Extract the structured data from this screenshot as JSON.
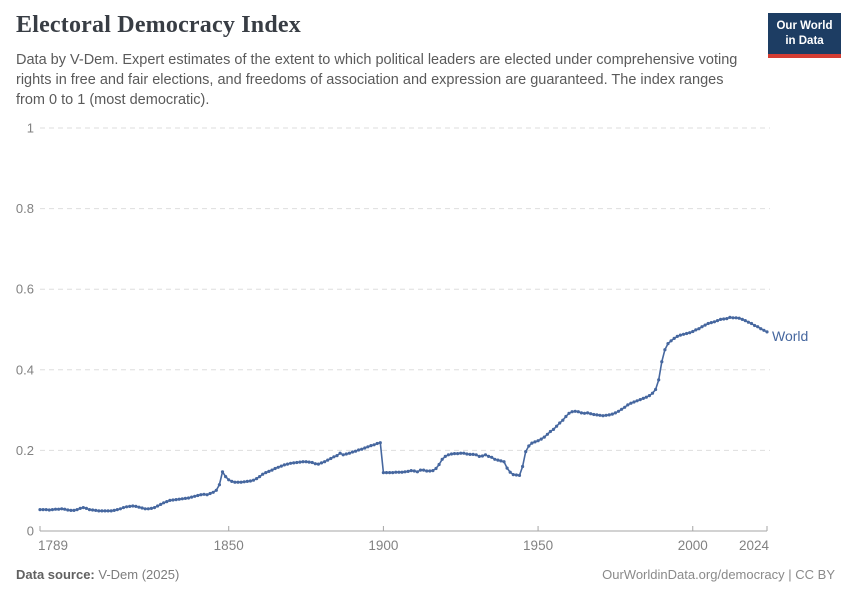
{
  "header": {
    "title": "Electoral Democracy Index",
    "subtitle": "Data by V-Dem. Expert estimates of the extent to which political leaders are elected under comprehensive voting rights in free and fair elections, and freedoms of association and expression are guaranteed. The index ranges from 0 to 1 (most democratic).",
    "logo": {
      "line1": "Our World",
      "line2": "in Data"
    }
  },
  "footer": {
    "source_label": "Data source:",
    "source_value": "V-Dem (2025)",
    "credit": "OurWorldinData.org/democracy | CC BY"
  },
  "chart_data": {
    "type": "line",
    "title": "Electoral Democracy Index",
    "xlabel": "",
    "ylabel": "",
    "xlim": [
      1789,
      2024
    ],
    "ylim": [
      0,
      1
    ],
    "x_ticks": [
      1789,
      1850,
      1900,
      1950,
      2000,
      2024
    ],
    "y_ticks": [
      0,
      0.2,
      0.4,
      0.6,
      0.8,
      1
    ],
    "y_tick_labels": [
      "0",
      "0.2",
      "0.4",
      "0.6",
      "0.8",
      "1"
    ],
    "grid": "horizontal-dashed",
    "legend_position": "end-of-line-label",
    "colors": {
      "line": "#46679f",
      "grid": "#dedede",
      "axis": "#a5a5a5",
      "tick_text": "#828282"
    },
    "series": [
      {
        "name": "World",
        "color": "#46679f",
        "x_start": 1789,
        "x_step": 1,
        "values": [
          0.053,
          0.053,
          0.053,
          0.052,
          0.053,
          0.054,
          0.054,
          0.055,
          0.054,
          0.052,
          0.051,
          0.051,
          0.053,
          0.056,
          0.058,
          0.056,
          0.053,
          0.052,
          0.051,
          0.05,
          0.05,
          0.05,
          0.05,
          0.05,
          0.051,
          0.053,
          0.055,
          0.058,
          0.06,
          0.061,
          0.062,
          0.061,
          0.059,
          0.057,
          0.055,
          0.055,
          0.056,
          0.058,
          0.062,
          0.066,
          0.07,
          0.073,
          0.076,
          0.077,
          0.078,
          0.079,
          0.08,
          0.081,
          0.082,
          0.084,
          0.086,
          0.088,
          0.09,
          0.091,
          0.09,
          0.093,
          0.096,
          0.101,
          0.115,
          0.147,
          0.135,
          0.127,
          0.123,
          0.121,
          0.121,
          0.121,
          0.122,
          0.123,
          0.124,
          0.126,
          0.13,
          0.135,
          0.141,
          0.145,
          0.148,
          0.151,
          0.155,
          0.158,
          0.161,
          0.164,
          0.166,
          0.168,
          0.169,
          0.17,
          0.171,
          0.172,
          0.172,
          0.171,
          0.17,
          0.167,
          0.166,
          0.169,
          0.172,
          0.176,
          0.18,
          0.184,
          0.187,
          0.193,
          0.189,
          0.191,
          0.193,
          0.196,
          0.198,
          0.201,
          0.203,
          0.206,
          0.209,
          0.212,
          0.214,
          0.217,
          0.219,
          0.145,
          0.145,
          0.145,
          0.145,
          0.146,
          0.146,
          0.146,
          0.147,
          0.148,
          0.15,
          0.149,
          0.147,
          0.151,
          0.151,
          0.149,
          0.149,
          0.15,
          0.155,
          0.165,
          0.178,
          0.185,
          0.189,
          0.191,
          0.192,
          0.192,
          0.193,
          0.193,
          0.191,
          0.19,
          0.19,
          0.189,
          0.185,
          0.186,
          0.189,
          0.185,
          0.183,
          0.178,
          0.176,
          0.174,
          0.172,
          0.156,
          0.146,
          0.14,
          0.139,
          0.138,
          0.16,
          0.197,
          0.211,
          0.218,
          0.221,
          0.224,
          0.228,
          0.233,
          0.24,
          0.247,
          0.252,
          0.26,
          0.268,
          0.275,
          0.284,
          0.292,
          0.296,
          0.297,
          0.296,
          0.293,
          0.292,
          0.293,
          0.291,
          0.289,
          0.288,
          0.287,
          0.286,
          0.287,
          0.288,
          0.29,
          0.293,
          0.297,
          0.302,
          0.307,
          0.313,
          0.317,
          0.32,
          0.323,
          0.326,
          0.329,
          0.332,
          0.336,
          0.342,
          0.351,
          0.375,
          0.42,
          0.45,
          0.465,
          0.472,
          0.478,
          0.483,
          0.486,
          0.488,
          0.49,
          0.492,
          0.495,
          0.499,
          0.502,
          0.507,
          0.511,
          0.515,
          0.517,
          0.519,
          0.522,
          0.525,
          0.526,
          0.527,
          0.53,
          0.529,
          0.529,
          0.528,
          0.525,
          0.522,
          0.518,
          0.515,
          0.51,
          0.507,
          0.502,
          0.498,
          0.494
        ]
      }
    ]
  }
}
